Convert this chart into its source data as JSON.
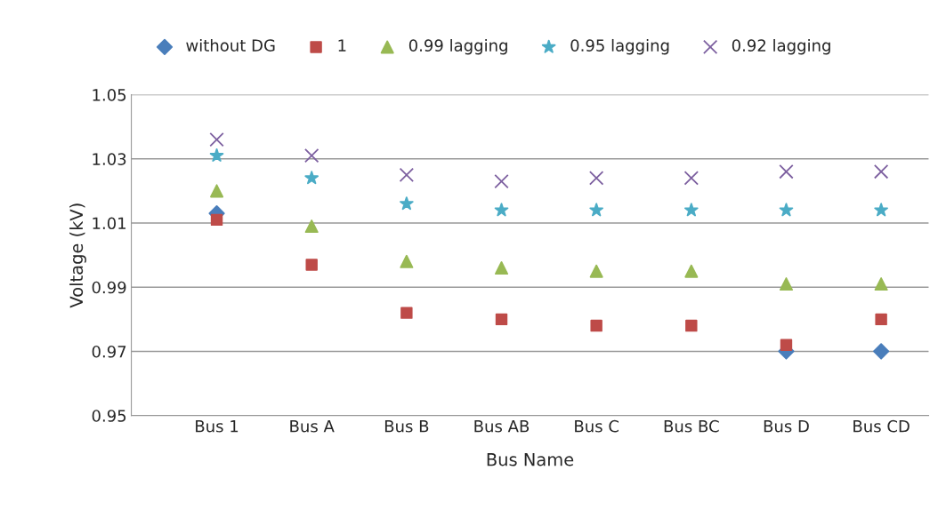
{
  "chart_data": {
    "type": "scatter",
    "xlabel": "Bus Name",
    "ylabel": "Voltage (kV)",
    "categories": [
      "Bus 1",
      "Bus A",
      "Bus B",
      "Bus AB",
      "Bus C",
      "Bus BC",
      "Bus D",
      "Bus CD"
    ],
    "series": [
      {
        "name": "without DG",
        "color": "#4a7ebb",
        "marker": "diamond",
        "values": [
          1.013,
          null,
          null,
          null,
          null,
          null,
          0.97,
          0.97
        ]
      },
      {
        "name": "1",
        "color": "#be4b48",
        "marker": "square",
        "values": [
          1.011,
          0.997,
          0.982,
          0.98,
          0.978,
          0.978,
          0.972,
          0.98
        ]
      },
      {
        "name": "0.99 lagging",
        "color": "#98b954",
        "marker": "triangle",
        "values": [
          1.02,
          1.009,
          0.998,
          0.996,
          0.995,
          0.995,
          0.991,
          0.991
        ]
      },
      {
        "name": "0.95 lagging",
        "color": "#4bacc6",
        "marker": "star",
        "values": [
          1.031,
          1.024,
          1.016,
          1.014,
          1.014,
          1.014,
          1.014,
          1.014
        ]
      },
      {
        "name": "0.92 lagging",
        "color": "#7d60a0",
        "marker": "cross",
        "values": [
          1.036,
          1.031,
          1.025,
          1.023,
          1.024,
          1.024,
          1.026,
          1.026
        ]
      }
    ],
    "ylim": [
      0.95,
      1.05
    ],
    "yticks": [
      {
        "value": 0.95,
        "label": "0.95"
      },
      {
        "value": 0.97,
        "label": "0.97"
      },
      {
        "value": 0.99,
        "label": "0.99"
      },
      {
        "value": 1.01,
        "label": "1.01"
      },
      {
        "value": 1.03,
        "label": "1.03"
      },
      {
        "value": 1.05,
        "label": "1.05"
      }
    ],
    "grid": "y",
    "legend": "top"
  }
}
